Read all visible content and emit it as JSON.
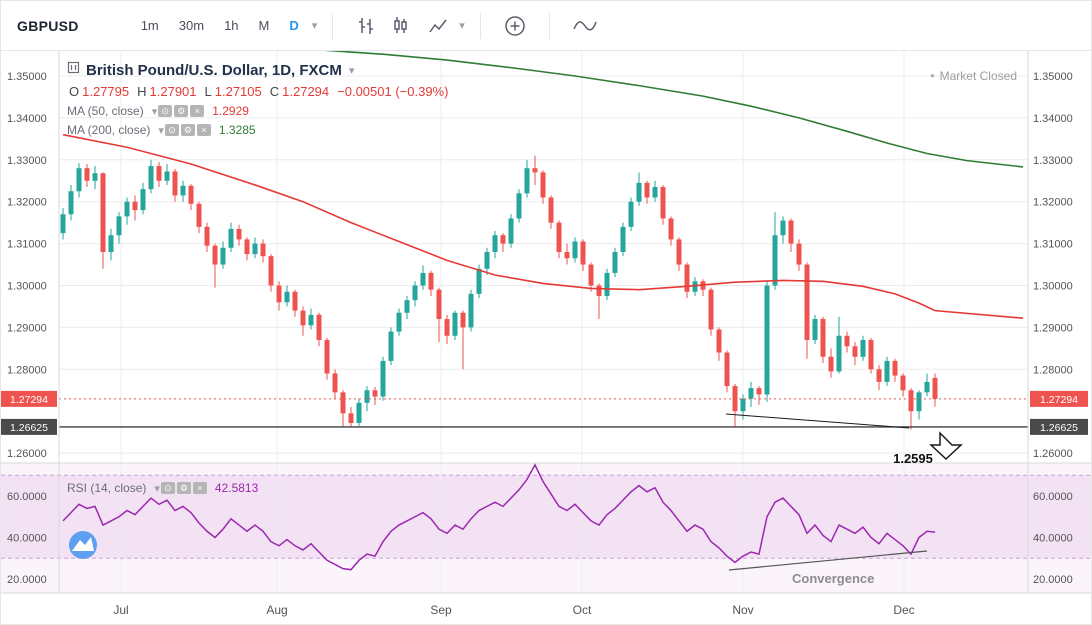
{
  "icons": {
    "eye": "⊙",
    "gear": "⚙",
    "close": "×",
    "caret": "▾",
    "dot": "•"
  },
  "toolbar": {
    "symbol": "GBPUSD",
    "intervals": [
      "1m",
      "30m",
      "1h",
      "M",
      "D"
    ],
    "active_interval": "D",
    "accent": "#2196f3"
  },
  "legend": {
    "title": "British Pound/U.S. Dollar, 1D, FXCM",
    "ohlc": {
      "o_l": "O",
      "o": "1.27795",
      "h_l": "H",
      "h": "1.27901",
      "l_l": "L",
      "l": "1.27105",
      "c_l": "C",
      "c": "1.27294",
      "change": "−0.00501 (−0.39%)"
    },
    "ma50_label": "MA (50, close)",
    "ma50_value": "1.2929",
    "ma200_label": "MA (200, close)",
    "ma200_value": "1.3285",
    "rsi_label": "RSI (14, close)",
    "rsi_value": "42.5813",
    "market_status": "Market Closed"
  },
  "annotations": {
    "target": "1.2595",
    "convergence": "Convergence"
  },
  "chart_data": {
    "type": "candlestick",
    "symbol": "GBPUSD",
    "description": "British Pound/U.S. Dollar",
    "interval": "1D",
    "exchange": "FXCM",
    "colors": {
      "up": "#26a69a",
      "down": "#ef5350",
      "grid": "#ececec",
      "axis_text": "#555555"
    },
    "price_axis": {
      "min": 1.26,
      "max": 1.355,
      "grid_step": 0.01,
      "ticks": [
        "1.35000",
        "1.34000",
        "1.33000",
        "1.32000",
        "1.31000",
        "1.30000",
        "1.29000",
        "1.28000",
        "1.26000"
      ],
      "grid": [
        1.35,
        1.34,
        1.33,
        1.32,
        1.31,
        1.3,
        1.29,
        1.28,
        1.26
      ]
    },
    "time_axis": {
      "months": [
        "Jul",
        "Aug",
        "Sep",
        "Oct",
        "Nov",
        "Dec"
      ],
      "month_x": [
        120,
        276,
        440,
        581,
        742,
        903
      ]
    },
    "last": {
      "open": 1.27795,
      "high": 1.27901,
      "low": 1.27105,
      "close": 1.27294,
      "change": "−0.00501",
      "change_pct": "−0.39%"
    },
    "levels": {
      "close": 1.27294,
      "close_label": "1.27294",
      "support": 1.26625,
      "support_label": "1.26625",
      "target_label": "1.2595"
    },
    "ma50": {
      "period": 50,
      "source": "close",
      "last": 1.2929,
      "color": "#e53935",
      "points": [
        [
          0,
          1.336
        ],
        [
          8,
          1.333
        ],
        [
          16,
          1.329
        ],
        [
          24,
          1.324
        ],
        [
          30,
          1.32
        ],
        [
          36,
          1.315
        ],
        [
          42,
          1.3105
        ],
        [
          48,
          1.306
        ],
        [
          54,
          1.3025
        ],
        [
          60,
          1.3005
        ],
        [
          66,
          1.2993
        ],
        [
          72,
          1.299
        ],
        [
          78,
          1.2998
        ],
        [
          84,
          1.3008
        ],
        [
          90,
          1.3012
        ],
        [
          95,
          1.301
        ],
        [
          100,
          1.2998
        ],
        [
          104,
          1.298
        ],
        [
          107,
          1.2958
        ],
        [
          109,
          1.294
        ],
        [
          120,
          1.2922
        ]
      ]
    },
    "ma200": {
      "period": 200,
      "source": "close",
      "last": 1.3285,
      "color": "#2e7d32",
      "points": [
        [
          30,
          1.3565
        ],
        [
          40,
          1.3552
        ],
        [
          48,
          1.3538
        ],
        [
          56,
          1.352
        ],
        [
          64,
          1.35
        ],
        [
          72,
          1.3477
        ],
        [
          80,
          1.3452
        ],
        [
          86,
          1.3428
        ],
        [
          92,
          1.34
        ],
        [
          98,
          1.3368
        ],
        [
          103,
          1.334
        ],
        [
          108,
          1.3315
        ],
        [
          113,
          1.3298
        ],
        [
          120,
          1.3283
        ]
      ]
    },
    "rsi": {
      "period": 14,
      "source": "close",
      "last": 42.5813,
      "color": "#9c27b0",
      "upper_band": 70,
      "lower_band": 30,
      "panel_bg": "#fbf4fb",
      "band_fill": "#f3e2f3",
      "band_line": "#c9a2d8",
      "scale_ticks": [
        "60.0000",
        "40.0000",
        "20.0000"
      ],
      "values": [
        48,
        52,
        56,
        54,
        55,
        46,
        48,
        50,
        53,
        51,
        55,
        59,
        56,
        58,
        53,
        55,
        52,
        47,
        43,
        40,
        44,
        49,
        46,
        43,
        46,
        43,
        38,
        36,
        39,
        36,
        34,
        37,
        33,
        29,
        27,
        25,
        24.5,
        29,
        32,
        31,
        38,
        43,
        46,
        48,
        50,
        52,
        49,
        44,
        42,
        46,
        44,
        49,
        53,
        55,
        57,
        55,
        59,
        63,
        68,
        75,
        67,
        61,
        55,
        53,
        56,
        52,
        48,
        46,
        51,
        54,
        58,
        62,
        65,
        62,
        64,
        57,
        53,
        48,
        43,
        46,
        44,
        38,
        35,
        31,
        28,
        31,
        33,
        32,
        50,
        57,
        59,
        55,
        51,
        42,
        46,
        41,
        38,
        46,
        44,
        42,
        45,
        40,
        37,
        42,
        39,
        36,
        32,
        40,
        43,
        42.58
      ]
    },
    "candles": [
      [
        1.3125,
        1.3185,
        1.311,
        1.317
      ],
      [
        1.317,
        1.324,
        1.3155,
        1.3225
      ],
      [
        1.3225,
        1.3292,
        1.321,
        1.328
      ],
      [
        1.328,
        1.329,
        1.3235,
        1.325
      ],
      [
        1.325,
        1.3285,
        1.323,
        1.3268
      ],
      [
        1.3268,
        1.327,
        1.304,
        1.308
      ],
      [
        1.308,
        1.3135,
        1.306,
        1.312
      ],
      [
        1.312,
        1.3175,
        1.31,
        1.3165
      ],
      [
        1.3165,
        1.321,
        1.3145,
        1.32
      ],
      [
        1.32,
        1.3215,
        1.3155,
        1.318
      ],
      [
        1.318,
        1.3245,
        1.317,
        1.323
      ],
      [
        1.323,
        1.33,
        1.322,
        1.3285
      ],
      [
        1.3285,
        1.3295,
        1.3235,
        1.325
      ],
      [
        1.325,
        1.329,
        1.324,
        1.3272
      ],
      [
        1.3272,
        1.3278,
        1.32,
        1.3215
      ],
      [
        1.3215,
        1.325,
        1.32,
        1.3238
      ],
      [
        1.3238,
        1.3242,
        1.318,
        1.3195
      ],
      [
        1.3195,
        1.32,
        1.3125,
        1.314
      ],
      [
        1.314,
        1.315,
        1.308,
        1.3095
      ],
      [
        1.3095,
        1.31,
        1.2995,
        1.305
      ],
      [
        1.305,
        1.3105,
        1.304,
        1.309
      ],
      [
        1.309,
        1.315,
        1.308,
        1.3135
      ],
      [
        1.3135,
        1.3145,
        1.3095,
        1.311
      ],
      [
        1.311,
        1.3115,
        1.306,
        1.3075
      ],
      [
        1.3075,
        1.3115,
        1.3065,
        1.31
      ],
      [
        1.31,
        1.311,
        1.3055,
        1.307
      ],
      [
        1.307,
        1.3075,
        1.2985,
        1.3
      ],
      [
        1.3,
        1.301,
        1.294,
        1.296
      ],
      [
        1.296,
        1.3,
        1.295,
        1.2985
      ],
      [
        1.2985,
        1.299,
        1.2925,
        1.294
      ],
      [
        1.294,
        1.295,
        1.288,
        1.2905
      ],
      [
        1.2905,
        1.2945,
        1.2895,
        1.293
      ],
      [
        1.293,
        1.2935,
        1.2855,
        1.287
      ],
      [
        1.287,
        1.2875,
        1.2775,
        1.279
      ],
      [
        1.279,
        1.28,
        1.273,
        1.2745
      ],
      [
        1.2745,
        1.275,
        1.2662,
        1.2695
      ],
      [
        1.2695,
        1.271,
        1.2662,
        1.2672
      ],
      [
        1.2672,
        1.273,
        1.2665,
        1.272
      ],
      [
        1.272,
        1.276,
        1.27,
        1.275
      ],
      [
        1.275,
        1.2758,
        1.2715,
        1.2735
      ],
      [
        1.2735,
        1.283,
        1.2725,
        1.282
      ],
      [
        1.282,
        1.29,
        1.281,
        1.289
      ],
      [
        1.289,
        1.2945,
        1.288,
        1.2935
      ],
      [
        1.2935,
        1.2975,
        1.292,
        1.2965
      ],
      [
        1.2965,
        1.301,
        1.295,
        1.3
      ],
      [
        1.3,
        1.3048,
        1.299,
        1.303
      ],
      [
        1.303,
        1.3035,
        1.2975,
        1.299
      ],
      [
        1.299,
        1.2995,
        1.2865,
        1.292
      ],
      [
        1.292,
        1.293,
        1.286,
        1.288
      ],
      [
        1.288,
        1.294,
        1.287,
        1.2935
      ],
      [
        1.2935,
        1.294,
        1.28,
        1.29
      ],
      [
        1.29,
        1.299,
        1.289,
        1.298
      ],
      [
        1.298,
        1.305,
        1.297,
        1.304
      ],
      [
        1.304,
        1.309,
        1.3025,
        1.308
      ],
      [
        1.308,
        1.313,
        1.3065,
        1.312
      ],
      [
        1.312,
        1.3125,
        1.308,
        1.31
      ],
      [
        1.31,
        1.317,
        1.309,
        1.316
      ],
      [
        1.316,
        1.323,
        1.315,
        1.322
      ],
      [
        1.322,
        1.33,
        1.321,
        1.328
      ],
      [
        1.328,
        1.331,
        1.324,
        1.327
      ],
      [
        1.327,
        1.3275,
        1.3195,
        1.321
      ],
      [
        1.321,
        1.3215,
        1.3135,
        1.315
      ],
      [
        1.315,
        1.3155,
        1.3065,
        1.308
      ],
      [
        1.308,
        1.31,
        1.305,
        1.3065
      ],
      [
        1.3065,
        1.3115,
        1.3055,
        1.3105
      ],
      [
        1.3105,
        1.311,
        1.3035,
        1.305
      ],
      [
        1.305,
        1.3055,
        1.2985,
        1.3
      ],
      [
        1.3,
        1.3005,
        1.292,
        1.2975
      ],
      [
        1.2975,
        1.304,
        1.2965,
        1.303
      ],
      [
        1.303,
        1.309,
        1.302,
        1.308
      ],
      [
        1.308,
        1.315,
        1.307,
        1.314
      ],
      [
        1.314,
        1.321,
        1.313,
        1.32
      ],
      [
        1.32,
        1.327,
        1.319,
        1.3245
      ],
      [
        1.3245,
        1.325,
        1.3195,
        1.321
      ],
      [
        1.321,
        1.325,
        1.32,
        1.3235
      ],
      [
        1.3235,
        1.324,
        1.3145,
        1.316
      ],
      [
        1.316,
        1.3165,
        1.3095,
        1.311
      ],
      [
        1.311,
        1.3115,
        1.3035,
        1.305
      ],
      [
        1.305,
        1.3055,
        1.297,
        1.2985
      ],
      [
        1.2985,
        1.302,
        1.2975,
        1.301
      ],
      [
        1.301,
        1.3015,
        1.2975,
        1.299
      ],
      [
        1.299,
        1.2995,
        1.288,
        1.2895
      ],
      [
        1.2895,
        1.29,
        1.282,
        1.284
      ],
      [
        1.284,
        1.2845,
        1.2745,
        1.276
      ],
      [
        1.276,
        1.2765,
        1.2662,
        1.27
      ],
      [
        1.27,
        1.274,
        1.268,
        1.273
      ],
      [
        1.273,
        1.277,
        1.271,
        1.2755
      ],
      [
        1.2755,
        1.276,
        1.2715,
        1.274
      ],
      [
        1.274,
        1.301,
        1.2722,
        1.3
      ],
      [
        1.3,
        1.3175,
        1.299,
        1.312
      ],
      [
        1.312,
        1.3165,
        1.31,
        1.3155
      ],
      [
        1.3155,
        1.316,
        1.308,
        1.31
      ],
      [
        1.31,
        1.311,
        1.3035,
        1.305
      ],
      [
        1.305,
        1.3055,
        1.2825,
        1.287
      ],
      [
        1.287,
        1.293,
        1.286,
        1.292
      ],
      [
        1.292,
        1.2925,
        1.2815,
        1.283
      ],
      [
        1.283,
        1.285,
        1.278,
        1.2795
      ],
      [
        1.2795,
        1.2925,
        1.279,
        1.288
      ],
      [
        1.288,
        1.289,
        1.284,
        1.2855
      ],
      [
        1.2855,
        1.2865,
        1.281,
        1.283
      ],
      [
        1.283,
        1.288,
        1.282,
        1.287
      ],
      [
        1.287,
        1.2875,
        1.279,
        1.28
      ],
      [
        1.28,
        1.281,
        1.275,
        1.277
      ],
      [
        1.277,
        1.283,
        1.276,
        1.282
      ],
      [
        1.282,
        1.2825,
        1.277,
        1.2785
      ],
      [
        1.2785,
        1.279,
        1.2735,
        1.275
      ],
      [
        1.275,
        1.2755,
        1.2656,
        1.27
      ],
      [
        1.27,
        1.275,
        1.268,
        1.2745
      ],
      [
        1.2745,
        1.279,
        1.2735,
        1.277
      ],
      [
        1.27795,
        1.27901,
        1.27105,
        1.27294
      ]
    ]
  }
}
